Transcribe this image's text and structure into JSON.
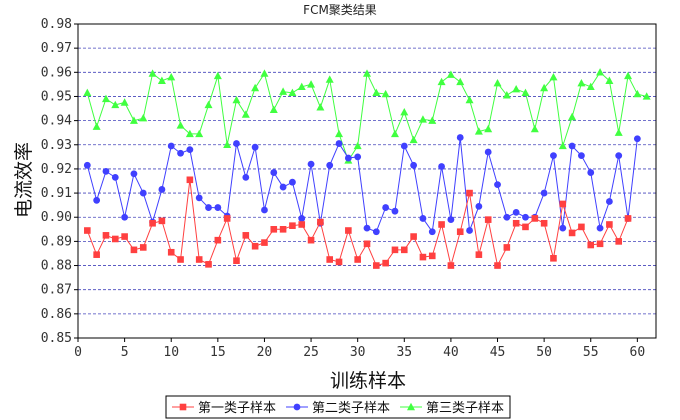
{
  "chart_data": {
    "type": "line",
    "title": "FCM聚类结果",
    "xlabel": "训练样本",
    "ylabel": "电流效率",
    "xlim": [
      0,
      62
    ],
    "ylim": [
      0.85,
      0.98
    ],
    "xticks": [
      0,
      5,
      10,
      15,
      20,
      25,
      30,
      35,
      40,
      45,
      50,
      55,
      60
    ],
    "yticks": [
      0.85,
      0.86,
      0.87,
      0.88,
      0.89,
      0.9,
      0.91,
      0.92,
      0.93,
      0.94,
      0.95,
      0.96,
      0.97,
      0.98
    ],
    "xtick_labels": [
      "0",
      "5",
      "10",
      "15",
      "20",
      "25",
      "30",
      "35",
      "40",
      "45",
      "50",
      "55",
      "60"
    ],
    "ytick_labels": [
      "0.85",
      "0.86",
      "0.87",
      "0.88",
      "0.89",
      "0.90",
      "0.91",
      "0.92",
      "0.93",
      "0.94",
      "0.95",
      "0.96",
      "0.97",
      "0.98"
    ],
    "grid": true,
    "legend_position": "bottom",
    "series": [
      {
        "name": "第一类子样本",
        "color": "#ff4040",
        "marker": "square",
        "x": [
          1,
          2,
          3,
          4,
          5,
          6,
          7,
          8,
          9,
          10,
          11,
          12,
          13,
          14,
          15,
          16,
          17,
          18,
          19,
          20,
          21,
          22,
          23,
          24,
          25,
          26,
          27,
          28,
          29,
          30,
          31,
          32,
          33,
          34,
          35,
          36,
          37,
          38,
          39,
          40,
          41,
          42,
          43,
          44,
          45,
          46,
          47,
          48,
          49,
          50,
          51,
          52,
          53,
          54,
          55,
          56,
          57,
          58,
          59
        ],
        "values": [
          0.8945,
          0.8845,
          0.8925,
          0.891,
          0.892,
          0.8865,
          0.8875,
          0.8975,
          0.8985,
          0.8855,
          0.8825,
          0.9155,
          0.8825,
          0.8805,
          0.8905,
          0.8995,
          0.882,
          0.8925,
          0.888,
          0.8895,
          0.895,
          0.895,
          0.8965,
          0.897,
          0.8905,
          0.898,
          0.8825,
          0.8815,
          0.8945,
          0.8825,
          0.889,
          0.88,
          0.881,
          0.8865,
          0.8865,
          0.892,
          0.8835,
          0.884,
          0.897,
          0.88,
          0.894,
          0.91,
          0.8845,
          0.899,
          0.88,
          0.8875,
          0.8975,
          0.896,
          0.8995,
          0.8975,
          0.883,
          0.9055,
          0.8935,
          0.896,
          0.8885,
          0.889,
          0.897,
          0.89,
          0.8995
        ]
      },
      {
        "name": "第二类子样本",
        "color": "#4040ff",
        "marker": "circle",
        "x": [
          1,
          2,
          3,
          4,
          5,
          6,
          7,
          8,
          9,
          10,
          11,
          12,
          13,
          14,
          15,
          16,
          17,
          18,
          19,
          20,
          21,
          22,
          23,
          24,
          25,
          26,
          27,
          28,
          29,
          30,
          31,
          32,
          33,
          34,
          35,
          36,
          37,
          38,
          39,
          40,
          41,
          42,
          43,
          44,
          45,
          46,
          47,
          48,
          49,
          50,
          51,
          52,
          53,
          54,
          55,
          56,
          57,
          58,
          59,
          60
        ],
        "values": [
          0.9215,
          0.907,
          0.919,
          0.9165,
          0.9,
          0.918,
          0.91,
          0.898,
          0.9115,
          0.9295,
          0.9265,
          0.928,
          0.908,
          0.904,
          0.904,
          0.9005,
          0.9305,
          0.9165,
          0.929,
          0.903,
          0.9185,
          0.9125,
          0.9145,
          0.8995,
          0.922,
          0.8975,
          0.9215,
          0.9305,
          0.9245,
          0.925,
          0.8955,
          0.894,
          0.904,
          0.9025,
          0.9295,
          0.9215,
          0.8995,
          0.894,
          0.921,
          0.899,
          0.933,
          0.8945,
          0.9045,
          0.927,
          0.9135,
          0.9,
          0.902,
          0.9,
          0.9,
          0.91,
          0.9255,
          0.8955,
          0.9295,
          0.9255,
          0.9185,
          0.8955,
          0.9065,
          0.9255,
          0.8995,
          0.9325
        ]
      },
      {
        "name": "第三类子样本",
        "color": "#40ff40",
        "marker": "triangle",
        "x": [
          1,
          2,
          3,
          4,
          5,
          6,
          7,
          8,
          9,
          10,
          11,
          12,
          13,
          14,
          15,
          16,
          17,
          18,
          19,
          20,
          21,
          22,
          23,
          24,
          25,
          26,
          27,
          28,
          29,
          30,
          31,
          32,
          33,
          34,
          35,
          36,
          37,
          38,
          39,
          40,
          41,
          42,
          43,
          44,
          45,
          46,
          47,
          48,
          49,
          50,
          51,
          52,
          53,
          54,
          55,
          56,
          57,
          58,
          59,
          60,
          61
        ],
        "values": [
          0.9515,
          0.9375,
          0.949,
          0.9465,
          0.9475,
          0.94,
          0.941,
          0.9595,
          0.9565,
          0.958,
          0.938,
          0.9345,
          0.9345,
          0.9465,
          0.9585,
          0.93,
          0.9485,
          0.9425,
          0.9535,
          0.9595,
          0.9445,
          0.952,
          0.9515,
          0.954,
          0.955,
          0.9455,
          0.957,
          0.9345,
          0.9235,
          0.9295,
          0.9595,
          0.9515,
          0.951,
          0.9345,
          0.9435,
          0.932,
          0.9405,
          0.94,
          0.956,
          0.959,
          0.956,
          0.9485,
          0.9355,
          0.9365,
          0.9555,
          0.9505,
          0.953,
          0.9515,
          0.9365,
          0.9535,
          0.958,
          0.9295,
          0.9415,
          0.9555,
          0.954,
          0.96,
          0.9565,
          0.935,
          0.9585,
          0.951,
          0.95
        ]
      }
    ]
  }
}
